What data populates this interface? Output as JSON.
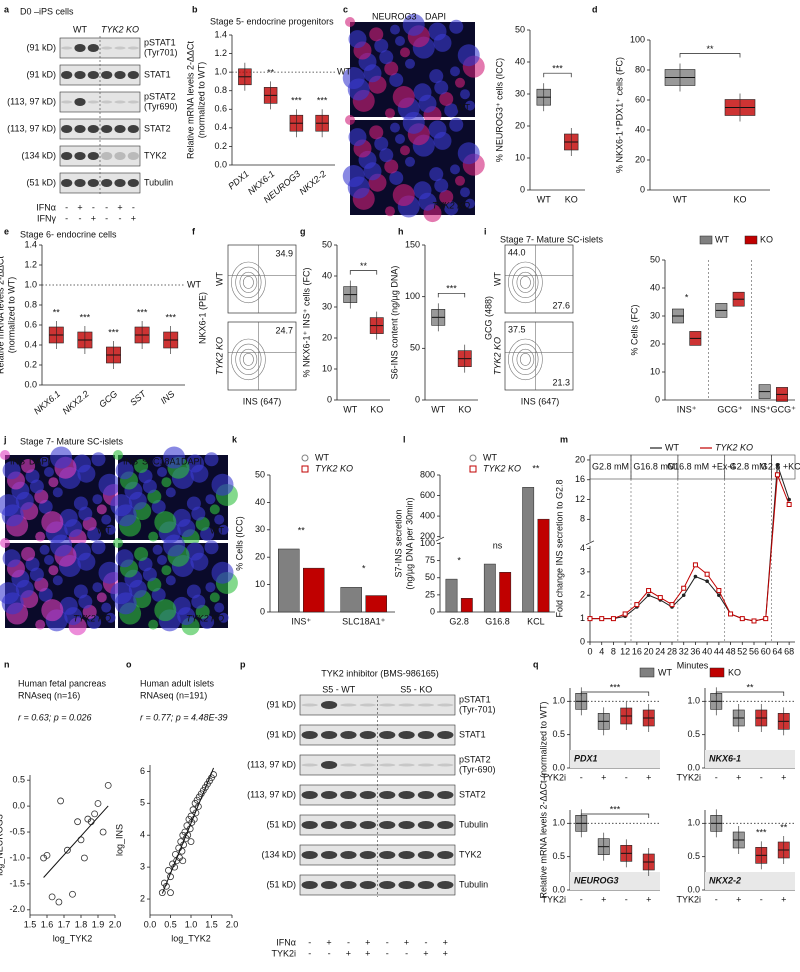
{
  "letters": [
    "a",
    "b",
    "c",
    "d",
    "e",
    "f",
    "g",
    "h",
    "i",
    "j",
    "k",
    "l",
    "m",
    "n",
    "o",
    "p",
    "q"
  ],
  "a": {
    "title": "D0 –iPS cells",
    "groups": [
      "WT",
      "TYK2 KO"
    ],
    "rows": [
      {
        "kd": "(91 kD)",
        "name": [
          "pSTAT1",
          "(Tyr701)"
        ]
      },
      {
        "kd": "(91 kD)",
        "name": [
          "STAT1"
        ]
      },
      {
        "kd": "(113, 97 kD)",
        "name": [
          "pSTAT2",
          "(Tyr690)"
        ]
      },
      {
        "kd": "(113, 97 kD)",
        "name": [
          "STAT2"
        ]
      },
      {
        "kd": "(134 kD)",
        "name": [
          "TYK2"
        ]
      },
      {
        "kd": "(51 kD)",
        "name": [
          "Tubulin"
        ]
      }
    ],
    "treat": [
      "IFNα",
      "IFNγ"
    ],
    "signs": [
      [
        "-",
        "+",
        "-",
        "-",
        "+",
        "-"
      ],
      [
        "-",
        "-",
        "+",
        "-",
        "-",
        "+"
      ]
    ]
  },
  "c": {
    "stain": [
      "NEUROG3",
      "DAPI"
    ],
    "panels": [
      "WT",
      "TYK2 KO"
    ]
  },
  "f": {
    "ylabel": "NKX6-1 (PE)",
    "xlabel": "INS (647)",
    "groups": [
      "WT",
      "TYK2 KO"
    ],
    "numbers": [
      "34.9",
      "24.7"
    ]
  },
  "i": {
    "title": "Stage 7- Mature SC-islets",
    "ylabel": "GCG (488)",
    "xlabel": "INS (647)",
    "groups": [
      "WT",
      "TYK2 KO"
    ],
    "numbers": [
      "44.0",
      "27.6",
      "37.5",
      "21.3"
    ]
  },
  "j": {
    "title": "Stage 7- Mature SC-islets",
    "channels": [
      [
        "INS",
        "DAPI"
      ],
      [
        "INS",
        "SLC18A1",
        "DAPI"
      ]
    ],
    "panels": [
      "WT",
      "WT",
      "TYK2 KO",
      "TYK2 KO"
    ]
  },
  "n": {
    "title": [
      "Human fetal pancreas",
      "RNAseq (n=16)"
    ],
    "stat": "r = 0.63; p = 0.026"
  },
  "o": {
    "title": [
      "Human adult islets",
      "RNAseq (n=191)"
    ],
    "stat": "r = 0.77; p = 4.48E-39"
  },
  "p": {
    "title": "TYK2 inhibitor (BMS-986165)",
    "groups": [
      "S5 - WT",
      "S5 - KO"
    ],
    "rows": [
      {
        "kd": "(91 kD)",
        "name": [
          "pSTAT1",
          "(Tyr-701)"
        ]
      },
      {
        "kd": "(91 kD)",
        "name": [
          "STAT1"
        ]
      },
      {
        "kd": "(113, 97 kD)",
        "name": [
          "pSTAT2",
          "(Tyr-690)"
        ]
      },
      {
        "kd": "(113, 97 kD)",
        "name": [
          "STAT2"
        ]
      },
      {
        "kd": "(51 kD)",
        "name": [
          "Tubulin"
        ]
      },
      {
        "kd": "(134 kD)",
        "name": [
          "TYK2"
        ]
      },
      {
        "kd": "(51 kD)",
        "name": [
          "Tubulin"
        ]
      }
    ],
    "treat": [
      "IFNα",
      "TYK2i"
    ],
    "signs": [
      [
        "-",
        "+",
        "-",
        "+",
        "-",
        "+",
        "-",
        "+"
      ],
      [
        "-",
        "-",
        "+",
        "+",
        "-",
        "-",
        "+",
        "+"
      ]
    ]
  },
  "q": {
    "legend": [
      "WT",
      "KO"
    ],
    "colors": [
      "#808080",
      "#c00000"
    ],
    "ylabel": "Relative mRNA levels 2-ΔΔCt (normalized to WT)"
  },
  "chart_data": [
    {
      "type": "box",
      "title": "Stage 5- endocrine progenitors",
      "ylabel": [
        "Relative mRNA levels 2-ΔΔCt",
        "(normalized to WT)"
      ],
      "categories": [
        "PDX1",
        "NKX6-1",
        "NEUROG3",
        "NKX2-2"
      ],
      "values": [
        0.95,
        0.75,
        0.45,
        0.45
      ],
      "colors": [
        "#c00000",
        "#c00000",
        "#c00000",
        "#c00000"
      ],
      "ylim": [
        0,
        1.4
      ],
      "yticks": [
        {
          "value": 0,
          "label": "0.0"
        },
        0.2,
        0.4,
        0.6,
        0.8,
        {
          "value": 1,
          "label": "1.0"
        },
        1.2,
        1.4
      ],
      "refline": 1,
      "reflabel": "WT",
      "sig": [
        null,
        "**",
        "***",
        "***"
      ]
    },
    {
      "type": "box",
      "ylabel": [
        "% NEUROG3⁺ cells (ICC)"
      ],
      "categories": [
        "WT",
        "KO"
      ],
      "values": [
        29,
        15
      ],
      "colors": [
        "#808080",
        "#c00000"
      ],
      "ylim": [
        0,
        50
      ],
      "yticks": [
        0,
        10,
        20,
        30,
        40,
        50
      ],
      "sig": "***"
    },
    {
      "type": "box",
      "ylabel": [
        "% NKX6-1⁺PDX1⁺ cells (FC)"
      ],
      "categories": [
        "WT",
        "KO"
      ],
      "values": [
        75,
        55
      ],
      "colors": [
        "#808080",
        "#c00000"
      ],
      "ylim": [
        0,
        100
      ],
      "yticks": [
        0,
        20,
        40,
        60,
        80,
        100
      ],
      "sig": "**"
    },
    {
      "type": "box",
      "title": "Stage 6- endocrine cells",
      "ylabel": [
        "Relative mRNA levels 2-ΔΔCt",
        "(normalized to WT)"
      ],
      "categories": [
        "NKX6.1",
        "NKX2.2",
        "GCG",
        "SST",
        "INS"
      ],
      "values": [
        0.5,
        0.45,
        0.3,
        0.5,
        0.45
      ],
      "colors": [
        "#c00000",
        "#c00000",
        "#c00000",
        "#c00000",
        "#c00000"
      ],
      "ylim": [
        0,
        1.4
      ],
      "yticks": [
        {
          "value": 0,
          "label": "0.0"
        },
        0.2,
        0.4,
        0.6,
        0.8,
        {
          "value": 1,
          "label": "1.0"
        },
        1.2,
        1.4
      ],
      "refline": 1,
      "reflabel": "WT",
      "sig": [
        "**",
        "***",
        "***",
        "***",
        "***"
      ]
    },
    {
      "type": "box",
      "ylabel": [
        "% NKX6-1⁺ INS⁺ cells (FC)"
      ],
      "categories": [
        "WT",
        "KO"
      ],
      "values": [
        34,
        24
      ],
      "colors": [
        "#808080",
        "#c00000"
      ],
      "ylim": [
        0,
        50
      ],
      "yticks": [
        0,
        10,
        20,
        30,
        40,
        50
      ],
      "sig": "**"
    },
    {
      "type": "box",
      "ylabel": [
        "S6-INS content (ng/µg DNA)"
      ],
      "categories": [
        "WT",
        "KO"
      ],
      "values": [
        80,
        40
      ],
      "colors": [
        "#808080",
        "#c00000"
      ],
      "ylim": [
        0,
        150
      ],
      "yticks": [
        0,
        50,
        100,
        150
      ],
      "sig": "***"
    },
    {
      "type": "box",
      "ylabel": [
        "% Cells (FC)"
      ],
      "categories": [
        "INS⁺",
        "GCG⁺",
        "INS⁺GCG⁺"
      ],
      "series": [
        {
          "name": "WT",
          "color": "#808080",
          "values": [
            30,
            32,
            3
          ]
        },
        {
          "name": "KO",
          "color": "#c00000",
          "values": [
            22,
            36,
            2
          ]
        }
      ],
      "ylim": [
        0,
        50
      ],
      "yticks": [
        0,
        10,
        20,
        30,
        40,
        50
      ],
      "sig": [
        "*",
        null,
        null
      ]
    },
    {
      "type": "bar",
      "ylabel": [
        "% Cells (ICC)"
      ],
      "categories": [
        "INS⁺",
        "SLC18A1⁺"
      ],
      "series": [
        {
          "name": "WT",
          "color": "#808080",
          "values": [
            23,
            9
          ]
        },
        {
          "name": "TYK2 KO",
          "color": "#c00000",
          "values": [
            16,
            6
          ]
        }
      ],
      "ylim": [
        0,
        50
      ],
      "yticks": [
        0,
        10,
        20,
        30,
        40,
        50
      ],
      "sig": [
        "**",
        "*"
      ]
    },
    {
      "type": "bar",
      "ylabel": [
        "S7-INS secretion",
        "(ng/µg DNA per 30min)"
      ],
      "categories": [
        "G2.8",
        "G16.8",
        "KCL"
      ],
      "series": [
        {
          "name": "WT",
          "color": "#808080",
          "values": [
            48,
            70,
            680
          ]
        },
        {
          "name": "TYK2 KO",
          "color": "#c00000",
          "values": [
            20,
            58,
            370
          ]
        }
      ],
      "ylim": [
        0,
        800
      ],
      "ybreak": [
        100,
        200
      ],
      "yticks": [
        0,
        25,
        50,
        75,
        100,
        200,
        400,
        600,
        800
      ],
      "sig": [
        "*",
        "ns",
        "**"
      ]
    },
    {
      "type": "line",
      "ylabel": [
        "Fold change INS secretion to G2.8"
      ],
      "xlabel": "Minutes",
      "x": [
        0,
        4,
        8,
        12,
        16,
        20,
        24,
        28,
        32,
        36,
        40,
        44,
        48,
        52,
        56,
        60,
        64,
        68
      ],
      "series": [
        {
          "name": "WT",
          "color": "#222222",
          "values": [
            1,
            1,
            1,
            1.1,
            1.5,
            2.0,
            1.8,
            1.5,
            2.0,
            2.8,
            2.6,
            2.0,
            1.2,
            1.0,
            0.9,
            1.0,
            19,
            12
          ]
        },
        {
          "name": "TYK2 KO",
          "color": "#c00000",
          "values": [
            1,
            1,
            1,
            1.2,
            1.6,
            2.2,
            1.9,
            1.6,
            2.3,
            3.3,
            2.9,
            2.2,
            1.2,
            1.0,
            0.9,
            1.0,
            17,
            11
          ]
        }
      ],
      "xlim": [
        0,
        70
      ],
      "xticks": [
        0,
        4,
        8,
        12,
        16,
        20,
        24,
        28,
        32,
        36,
        40,
        44,
        48,
        52,
        56,
        60,
        64,
        68
      ],
      "ylim": [
        0,
        21
      ],
      "ybreak": [
        4,
        4
      ],
      "yticks": [
        0,
        1,
        2,
        3,
        4,
        8,
        12,
        16,
        20
      ],
      "phases": [
        "G2.8 mM",
        "G16.8 mM",
        "G16.8 mM +Ex-4",
        "G2.8 mM",
        "G2.8 +KCL"
      ],
      "phase_edges": [
        14,
        30,
        46,
        62
      ]
    },
    {
      "type": "scatter",
      "xlabel": "log_TYK2",
      "ylabel": [
        "log_NEUROG3"
      ],
      "x": [
        1.58,
        1.6,
        1.63,
        1.67,
        1.68,
        1.72,
        1.75,
        1.78,
        1.8,
        1.82,
        1.84,
        1.86,
        1.88,
        1.9,
        1.93,
        1.96
      ],
      "values": [
        -1.0,
        -0.95,
        -1.75,
        -1.85,
        0.1,
        -0.85,
        -1.7,
        -0.3,
        -0.65,
        -1.0,
        -0.25,
        -0.3,
        -0.15,
        0.05,
        -0.5,
        0.4
      ],
      "xlim": [
        1.5,
        2.0
      ],
      "xticks": [
        1.5,
        1.6,
        1.7,
        1.8,
        1.9,
        {
          "value": 2,
          "label": "2.0"
        }
      ],
      "ylim": [
        -2.1,
        0.6
      ],
      "yticks": [
        {
          "value": -2,
          "label": "-2.0"
        },
        -1.5,
        {
          "value": -1,
          "label": "-1.0"
        },
        -0.5,
        {
          "value": 0,
          "label": "0.0"
        },
        0.5
      ]
    },
    {
      "type": "scatter",
      "xlabel": "log_TYK2",
      "ylabel": [
        "log_INS"
      ],
      "x": [
        0.3,
        0.35,
        0.4,
        0.45,
        0.5,
        0.55,
        0.6,
        0.62,
        0.65,
        0.7,
        0.72,
        0.75,
        0.78,
        0.8,
        0.82,
        0.85,
        0.88,
        0.9,
        0.92,
        0.95,
        0.98,
        1.0,
        1.02,
        1.05,
        1.08,
        1.1,
        1.12,
        1.15,
        1.18,
        1.2,
        1.25,
        1.3,
        1.35,
        1.4,
        1.45,
        1.5,
        1.55,
        0.5,
        0.8,
        1.0
      ],
      "values": [
        2.2,
        2.5,
        2.4,
        2.9,
        2.7,
        3.1,
        3.0,
        3.4,
        3.2,
        3.6,
        3.3,
        3.8,
        3.5,
        4.0,
        3.7,
        4.1,
        3.9,
        4.3,
        4.0,
        4.5,
        4.2,
        4.6,
        4.4,
        4.8,
        4.5,
        5.0,
        4.7,
        5.1,
        4.9,
        5.2,
        5.3,
        5.4,
        5.5,
        5.6,
        5.7,
        5.8,
        5.9,
        2.2,
        3.2,
        3.8
      ],
      "xlim": [
        0,
        2
      ],
      "xticks": [
        {
          "value": 0,
          "label": "0.0"
        },
        0.5,
        {
          "value": 1,
          "label": "1.0"
        },
        1.5,
        {
          "value": 2,
          "label": "2.0"
        }
      ],
      "ylim": [
        1.5,
        6.2
      ],
      "yticks": [
        2,
        3,
        4,
        5,
        6
      ]
    },
    {
      "type": "box",
      "title": "PDX1",
      "xlabel": "TYK2i",
      "categories": [
        "-",
        "+",
        "-",
        "+"
      ],
      "values": [
        1,
        0.7,
        0.78,
        0.75
      ],
      "colors": [
        "#808080",
        "#808080",
        "#c00000",
        "#c00000"
      ],
      "ylim": [
        0,
        1.2
      ],
      "yticks": [
        {
          "value": 0,
          "label": "0.0"
        },
        0.5,
        {
          "value": 1,
          "label": "1.0"
        }
      ],
      "refline": 1,
      "sig": "***"
    },
    {
      "type": "box",
      "title": "NKX6-1",
      "xlabel": "TYK2i",
      "categories": [
        "-",
        "+",
        "-",
        "+"
      ],
      "values": [
        1,
        0.75,
        0.75,
        0.7
      ],
      "colors": [
        "#808080",
        "#808080",
        "#c00000",
        "#c00000"
      ],
      "ylim": [
        0,
        1.2
      ],
      "yticks": [
        {
          "value": 0,
          "label": "0.0"
        },
        0.5,
        {
          "value": 1,
          "label": "1.0"
        }
      ],
      "refline": 1,
      "sig": "**"
    },
    {
      "type": "box",
      "title": "NEUROG3",
      "xlabel": "TYK2i",
      "categories": [
        "-",
        "+",
        "-",
        "+"
      ],
      "values": [
        1,
        0.65,
        0.55,
        0.42
      ],
      "colors": [
        "#808080",
        "#808080",
        "#c00000",
        "#c00000"
      ],
      "ylim": [
        0,
        1.2
      ],
      "yticks": [
        {
          "value": 0,
          "label": "0.0"
        },
        0.5,
        {
          "value": 1,
          "label": "1.0"
        }
      ],
      "refline": 1,
      "sig": "***"
    },
    {
      "type": "box",
      "title": "NKX2-2",
      "xlabel": "TYK2i",
      "categories": [
        "-",
        "+",
        "-",
        "+"
      ],
      "values": [
        1,
        0.75,
        0.52,
        0.6
      ],
      "colors": [
        "#808080",
        "#808080",
        "#c00000",
        "#c00000"
      ],
      "ylim": [
        0,
        1.2
      ],
      "yticks": [
        {
          "value": 0,
          "label": "0.0"
        },
        0.5,
        {
          "value": 1,
          "label": "1.0"
        }
      ],
      "refline": 1,
      "sig": [
        null,
        null,
        "***",
        "**"
      ]
    }
  ]
}
